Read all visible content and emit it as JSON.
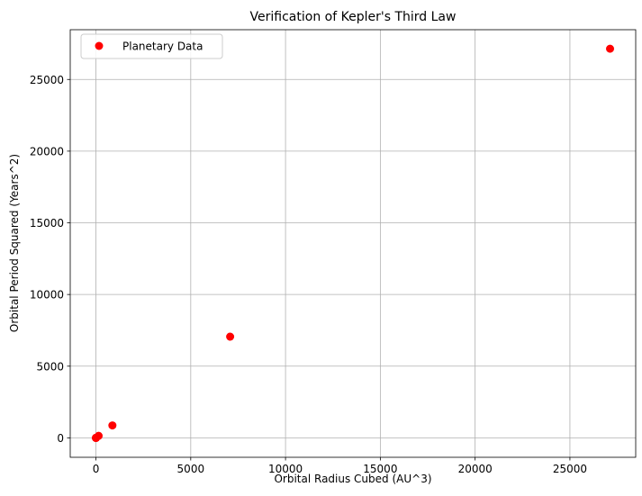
{
  "chart_data": {
    "type": "scatter",
    "title": "Verification of Kepler's Third Law",
    "xlabel": "Orbital Radius Cubed (AU^3)",
    "ylabel": "Orbital Period Squared (Years^2)",
    "xlim": [
      -1356,
      28470
    ],
    "ylim": [
      -1356,
      28470
    ],
    "xticks": [
      0,
      5000,
      10000,
      15000,
      20000,
      25000
    ],
    "yticks": [
      0,
      5000,
      10000,
      15000,
      20000,
      25000
    ],
    "grid": true,
    "legend_position": "top-left",
    "series": [
      {
        "name": "Planetary Data",
        "color": "#ff0000",
        "marker": "circle",
        "x": [
          0.06,
          0.38,
          1.0,
          3.54,
          140.6,
          868.3,
          7078.6,
          27117.4
        ],
        "y": [
          0.06,
          0.38,
          1.0,
          3.54,
          140.7,
          867.7,
          7058.3,
          27143.4
        ]
      }
    ]
  }
}
